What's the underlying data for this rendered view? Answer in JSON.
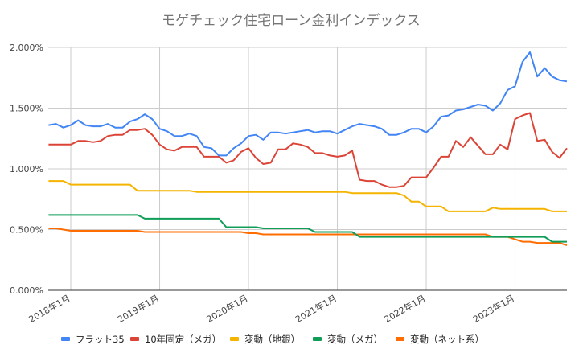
{
  "chart_data": {
    "type": "line",
    "title": "モゲチェック住宅ローン金利インデックス",
    "xlabel": "",
    "ylabel": "",
    "ylim": [
      0,
      2.0
    ],
    "yticks": [
      "0.000%",
      "0.500%",
      "1.000%",
      "1.500%",
      "2.000%"
    ],
    "ytick_values": [
      0,
      0.5,
      1.0,
      1.5,
      2.0
    ],
    "xticks": [
      {
        "label": "2018年1月",
        "x": "2018-01"
      },
      {
        "label": "2019年1月",
        "x": "2019-01"
      },
      {
        "label": "2020年1月",
        "x": "2020-01"
      },
      {
        "label": "2021年1月",
        "x": "2021-01"
      },
      {
        "label": "2022年1月",
        "x": "2022-01"
      },
      {
        "label": "2023年1月",
        "x": "2023-01"
      }
    ],
    "grid": true,
    "legend_position": "bottom",
    "x": [
      "2017-10",
      "2017-11",
      "2017-12",
      "2018-01",
      "2018-02",
      "2018-03",
      "2018-04",
      "2018-05",
      "2018-06",
      "2018-07",
      "2018-08",
      "2018-09",
      "2018-10",
      "2018-11",
      "2018-12",
      "2019-01",
      "2019-02",
      "2019-03",
      "2019-04",
      "2019-05",
      "2019-06",
      "2019-07",
      "2019-08",
      "2019-09",
      "2019-10",
      "2019-11",
      "2019-12",
      "2020-01",
      "2020-02",
      "2020-03",
      "2020-04",
      "2020-05",
      "2020-06",
      "2020-07",
      "2020-08",
      "2020-09",
      "2020-10",
      "2020-11",
      "2020-12",
      "2021-01",
      "2021-02",
      "2021-03",
      "2021-04",
      "2021-05",
      "2021-06",
      "2021-07",
      "2021-08",
      "2021-09",
      "2021-10",
      "2021-11",
      "2021-12",
      "2022-01",
      "2022-02",
      "2022-03",
      "2022-04",
      "2022-05",
      "2022-06",
      "2022-07",
      "2022-08",
      "2022-09",
      "2022-10",
      "2022-11",
      "2022-12",
      "2023-01",
      "2023-02",
      "2023-03",
      "2023-04",
      "2023-05",
      "2023-06",
      "2023-07",
      "2023-08"
    ],
    "series": [
      {
        "name": "フラット35",
        "color": "#4285f4",
        "values": [
          1.36,
          1.37,
          1.34,
          1.36,
          1.4,
          1.36,
          1.35,
          1.35,
          1.37,
          1.34,
          1.34,
          1.39,
          1.41,
          1.45,
          1.41,
          1.33,
          1.31,
          1.27,
          1.27,
          1.29,
          1.27,
          1.18,
          1.17,
          1.11,
          1.11,
          1.17,
          1.21,
          1.27,
          1.28,
          1.24,
          1.3,
          1.3,
          1.29,
          1.3,
          1.31,
          1.32,
          1.3,
          1.31,
          1.31,
          1.29,
          1.32,
          1.35,
          1.37,
          1.36,
          1.35,
          1.33,
          1.28,
          1.28,
          1.3,
          1.33,
          1.33,
          1.3,
          1.35,
          1.43,
          1.44,
          1.48,
          1.49,
          1.51,
          1.53,
          1.52,
          1.48,
          1.54,
          1.65,
          1.68,
          1.88,
          1.96,
          1.76,
          1.83,
          1.76,
          1.73,
          1.72
        ]
      },
      {
        "name": "10年固定（メガ）",
        "color": "#db4437",
        "values": [
          1.2,
          1.2,
          1.2,
          1.2,
          1.23,
          1.23,
          1.22,
          1.23,
          1.27,
          1.28,
          1.28,
          1.32,
          1.32,
          1.33,
          1.28,
          1.2,
          1.16,
          1.15,
          1.18,
          1.18,
          1.18,
          1.1,
          1.1,
          1.1,
          1.05,
          1.07,
          1.14,
          1.17,
          1.09,
          1.04,
          1.05,
          1.16,
          1.16,
          1.21,
          1.2,
          1.18,
          1.13,
          1.13,
          1.11,
          1.1,
          1.11,
          1.15,
          0.91,
          0.9,
          0.9,
          0.87,
          0.85,
          0.85,
          0.86,
          0.93,
          0.93,
          0.93,
          1.01,
          1.1,
          1.1,
          1.23,
          1.18,
          1.26,
          1.19,
          1.12,
          1.12,
          1.2,
          1.16,
          1.41,
          1.44,
          1.46,
          1.23,
          1.24,
          1.14,
          1.09,
          1.17
        ]
      },
      {
        "name": "変動（地銀）",
        "color": "#f4b400",
        "values": [
          0.9,
          0.9,
          0.9,
          0.87,
          0.87,
          0.87,
          0.87,
          0.87,
          0.87,
          0.87,
          0.87,
          0.87,
          0.82,
          0.82,
          0.82,
          0.82,
          0.82,
          0.82,
          0.82,
          0.82,
          0.81,
          0.81,
          0.81,
          0.81,
          0.81,
          0.81,
          0.81,
          0.81,
          0.81,
          0.81,
          0.81,
          0.81,
          0.81,
          0.81,
          0.81,
          0.81,
          0.81,
          0.81,
          0.81,
          0.81,
          0.81,
          0.8,
          0.8,
          0.8,
          0.8,
          0.8,
          0.8,
          0.8,
          0.78,
          0.73,
          0.73,
          0.69,
          0.69,
          0.69,
          0.65,
          0.65,
          0.65,
          0.65,
          0.65,
          0.65,
          0.68,
          0.67,
          0.67,
          0.67,
          0.67,
          0.67,
          0.67,
          0.67,
          0.65,
          0.65,
          0.65
        ]
      },
      {
        "name": "変動（メガ）",
        "color": "#0f9d58",
        "values": [
          0.62,
          0.62,
          0.62,
          0.62,
          0.62,
          0.62,
          0.62,
          0.62,
          0.62,
          0.62,
          0.62,
          0.62,
          0.62,
          0.59,
          0.59,
          0.59,
          0.59,
          0.59,
          0.59,
          0.59,
          0.59,
          0.59,
          0.59,
          0.59,
          0.52,
          0.52,
          0.52,
          0.52,
          0.52,
          0.51,
          0.51,
          0.51,
          0.51,
          0.51,
          0.51,
          0.51,
          0.48,
          0.48,
          0.48,
          0.48,
          0.48,
          0.48,
          0.44,
          0.44,
          0.44,
          0.44,
          0.44,
          0.44,
          0.44,
          0.44,
          0.44,
          0.44,
          0.44,
          0.44,
          0.44,
          0.44,
          0.44,
          0.44,
          0.44,
          0.44,
          0.44,
          0.44,
          0.44,
          0.44,
          0.44,
          0.44,
          0.44,
          0.44,
          0.4,
          0.4,
          0.4
        ]
      },
      {
        "name": "変動（ネット系）",
        "color": "#ff6d01",
        "values": [
          0.51,
          0.51,
          0.5,
          0.49,
          0.49,
          0.49,
          0.49,
          0.49,
          0.49,
          0.49,
          0.49,
          0.49,
          0.49,
          0.48,
          0.48,
          0.48,
          0.48,
          0.48,
          0.48,
          0.48,
          0.48,
          0.48,
          0.48,
          0.48,
          0.48,
          0.48,
          0.48,
          0.47,
          0.47,
          0.46,
          0.46,
          0.46,
          0.46,
          0.46,
          0.46,
          0.46,
          0.46,
          0.46,
          0.46,
          0.46,
          0.46,
          0.46,
          0.46,
          0.46,
          0.46,
          0.46,
          0.46,
          0.46,
          0.46,
          0.46,
          0.46,
          0.46,
          0.46,
          0.46,
          0.46,
          0.46,
          0.46,
          0.46,
          0.46,
          0.46,
          0.44,
          0.44,
          0.44,
          0.42,
          0.4,
          0.4,
          0.39,
          0.39,
          0.39,
          0.39,
          0.37
        ]
      }
    ]
  }
}
